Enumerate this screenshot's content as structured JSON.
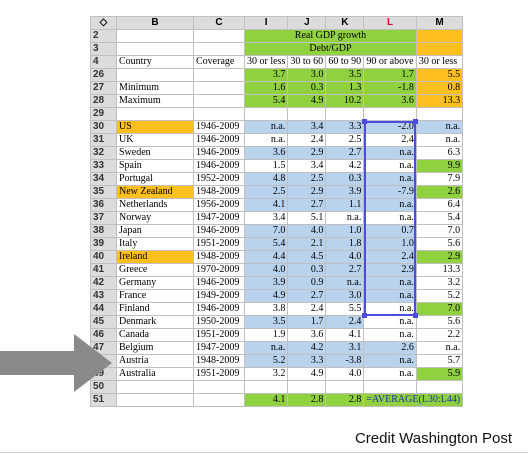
{
  "columns": [
    "◇",
    "B",
    "C",
    "I",
    "J",
    "K",
    "L",
    "M"
  ],
  "rows": [
    {
      "n": "2",
      "cells": [
        [
          "",
          "w"
        ],
        [
          "",
          "w"
        ],
        [
          "Real GDP growth",
          "g",
          4,
          "hdr"
        ],
        [
          "",
          "o"
        ]
      ]
    },
    {
      "n": "3",
      "cells": [
        [
          "",
          "w"
        ],
        [
          "",
          "w"
        ],
        [
          "Debt/GDP",
          "g",
          4,
          "hdr"
        ],
        [
          "",
          "o"
        ]
      ]
    },
    {
      "n": "4",
      "cells": [
        [
          "Country",
          "w"
        ],
        [
          "Coverage",
          "w"
        ],
        [
          "30 or less",
          "w"
        ],
        [
          "30 to 60",
          "w"
        ],
        [
          "60 to 90",
          "w"
        ],
        [
          "90 or above",
          "w"
        ],
        [
          "30 or less",
          "w"
        ]
      ]
    },
    {
      "n": "26",
      "cells": [
        [
          "",
          "w"
        ],
        [
          "",
          "w"
        ],
        [
          "3.7",
          "g"
        ],
        [
          "3.0",
          "g"
        ],
        [
          "3.5",
          "g"
        ],
        [
          "1.7",
          "g"
        ],
        [
          "5.5",
          "o"
        ]
      ]
    },
    {
      "n": "27",
      "cells": [
        [
          "Minimum",
          "w"
        ],
        [
          "",
          "w"
        ],
        [
          "1.6",
          "g"
        ],
        [
          "0.3",
          "g"
        ],
        [
          "1.3",
          "g"
        ],
        [
          "-1.8",
          "g"
        ],
        [
          "0.8",
          "o"
        ]
      ]
    },
    {
      "n": "28",
      "cells": [
        [
          "Maximum",
          "w"
        ],
        [
          "",
          "w"
        ],
        [
          "5.4",
          "g"
        ],
        [
          "4.9",
          "g"
        ],
        [
          "10.2",
          "g"
        ],
        [
          "3.6",
          "g"
        ],
        [
          "13.3",
          "o"
        ]
      ]
    },
    {
      "n": "29",
      "cells": [
        [
          "",
          "w"
        ],
        [
          "",
          "w"
        ],
        [
          "",
          "w"
        ],
        [
          "",
          "w"
        ],
        [
          "",
          "w"
        ],
        [
          "",
          "w"
        ],
        [
          "",
          "w"
        ]
      ]
    },
    {
      "n": "30",
      "cells": [
        [
          "US",
          "o"
        ],
        [
          "1946-2009",
          "w"
        ],
        [
          "n.a.",
          "b"
        ],
        [
          "3.4",
          "b"
        ],
        [
          "3.3",
          "b"
        ],
        [
          "-2.0",
          "b"
        ],
        [
          "n.a.",
          "b"
        ]
      ]
    },
    {
      "n": "31",
      "cells": [
        [
          "UK",
          "w"
        ],
        [
          "1946-2009",
          "w"
        ],
        [
          "n.a.",
          "w"
        ],
        [
          "2.4",
          "w"
        ],
        [
          "2.5",
          "w"
        ],
        [
          "2.4",
          "w"
        ],
        [
          "n.a.",
          "w"
        ]
      ]
    },
    {
      "n": "32",
      "cells": [
        [
          "Sweden",
          "w"
        ],
        [
          "1946-2009",
          "w"
        ],
        [
          "3.6",
          "b"
        ],
        [
          "2.9",
          "b"
        ],
        [
          "2.7",
          "b"
        ],
        [
          "n.a.",
          "b"
        ],
        [
          "6.3",
          "w"
        ]
      ]
    },
    {
      "n": "33",
      "cells": [
        [
          "Spain",
          "w"
        ],
        [
          "1946-2009",
          "w"
        ],
        [
          "1.5",
          "w"
        ],
        [
          "3.4",
          "w"
        ],
        [
          "4.2",
          "w"
        ],
        [
          "n.a.",
          "w"
        ],
        [
          "9.9",
          "g"
        ]
      ]
    },
    {
      "n": "34",
      "cells": [
        [
          "Portugal",
          "w"
        ],
        [
          "1952-2009",
          "w"
        ],
        [
          "4.8",
          "b"
        ],
        [
          "2.5",
          "b"
        ],
        [
          "0.3",
          "b"
        ],
        [
          "n.a.",
          "b"
        ],
        [
          "7.9",
          "w"
        ]
      ]
    },
    {
      "n": "35",
      "cells": [
        [
          "New Zealand",
          "o"
        ],
        [
          "1948-2009",
          "w"
        ],
        [
          "2.5",
          "b"
        ],
        [
          "2.9",
          "b"
        ],
        [
          "3.9",
          "b"
        ],
        [
          "-7.9",
          "b"
        ],
        [
          "2.6",
          "g"
        ]
      ]
    },
    {
      "n": "36",
      "cells": [
        [
          "Netherlands",
          "w"
        ],
        [
          "1956-2009",
          "w"
        ],
        [
          "4.1",
          "b"
        ],
        [
          "2.7",
          "b"
        ],
        [
          "1.1",
          "b"
        ],
        [
          "n.a.",
          "b"
        ],
        [
          "6.4",
          "w"
        ]
      ]
    },
    {
      "n": "37",
      "cells": [
        [
          "Norway",
          "w"
        ],
        [
          "1947-2009",
          "w"
        ],
        [
          "3.4",
          "w"
        ],
        [
          "5.1",
          "w"
        ],
        [
          "n.a.",
          "w"
        ],
        [
          "n.a.",
          "w"
        ],
        [
          "5.4",
          "w"
        ]
      ]
    },
    {
      "n": "38",
      "cells": [
        [
          "Japan",
          "w"
        ],
        [
          "1946-2009",
          "w"
        ],
        [
          "7.0",
          "b"
        ],
        [
          "4.0",
          "b"
        ],
        [
          "1.0",
          "b"
        ],
        [
          "0.7",
          "b"
        ],
        [
          "7.0",
          "w"
        ]
      ]
    },
    {
      "n": "39",
      "cells": [
        [
          "Italy",
          "w"
        ],
        [
          "1951-2009",
          "w"
        ],
        [
          "5.4",
          "b"
        ],
        [
          "2.1",
          "b"
        ],
        [
          "1.8",
          "b"
        ],
        [
          "1.0",
          "b"
        ],
        [
          "5.6",
          "w"
        ]
      ]
    },
    {
      "n": "40",
      "cells": [
        [
          "Ireland",
          "o"
        ],
        [
          "1948-2009",
          "w"
        ],
        [
          "4.4",
          "b"
        ],
        [
          "4.5",
          "b"
        ],
        [
          "4.0",
          "b"
        ],
        [
          "2.4",
          "b"
        ],
        [
          "2.9",
          "g"
        ]
      ]
    },
    {
      "n": "41",
      "cells": [
        [
          "Greece",
          "w"
        ],
        [
          "1970-2009",
          "w"
        ],
        [
          "4.0",
          "b"
        ],
        [
          "0.3",
          "b"
        ],
        [
          "2.7",
          "b"
        ],
        [
          "2.9",
          "b"
        ],
        [
          "13.3",
          "w"
        ]
      ]
    },
    {
      "n": "42",
      "cells": [
        [
          "Germany",
          "w"
        ],
        [
          "1946-2009",
          "w"
        ],
        [
          "3.9",
          "b"
        ],
        [
          "0.9",
          "b"
        ],
        [
          "n.a.",
          "b"
        ],
        [
          "n.a.",
          "b"
        ],
        [
          "3.2",
          "w"
        ]
      ]
    },
    {
      "n": "43",
      "cells": [
        [
          "France",
          "w"
        ],
        [
          "1949-2009",
          "w"
        ],
        [
          "4.9",
          "b"
        ],
        [
          "2.7",
          "b"
        ],
        [
          "3.0",
          "b"
        ],
        [
          "n.a.",
          "b"
        ],
        [
          "5.2",
          "w"
        ]
      ]
    },
    {
      "n": "44",
      "cells": [
        [
          "Finland",
          "w"
        ],
        [
          "1946-2009",
          "w"
        ],
        [
          "3.8",
          "w"
        ],
        [
          "2.4",
          "w"
        ],
        [
          "5.5",
          "w"
        ],
        [
          "n.a.",
          "w"
        ],
        [
          "7.0",
          "g"
        ]
      ]
    },
    {
      "n": "45",
      "cells": [
        [
          "Denmark",
          "w"
        ],
        [
          "1950-2009",
          "w"
        ],
        [
          "3.5",
          "b"
        ],
        [
          "1.7",
          "b"
        ],
        [
          "2.4",
          "b"
        ],
        [
          "n.a.",
          "w"
        ],
        [
          "5.6",
          "w"
        ]
      ]
    },
    {
      "n": "46",
      "cells": [
        [
          "Canada",
          "w"
        ],
        [
          "1951-2009",
          "w"
        ],
        [
          "1.9",
          "w"
        ],
        [
          "3.6",
          "w"
        ],
        [
          "4.1",
          "w"
        ],
        [
          "n.a.",
          "w"
        ],
        [
          "2.2",
          "w"
        ]
      ]
    },
    {
      "n": "47",
      "cells": [
        [
          "Belgium",
          "w"
        ],
        [
          "1947-2009",
          "w"
        ],
        [
          "n.a.",
          "b"
        ],
        [
          "4.2",
          "b"
        ],
        [
          "3.1",
          "b"
        ],
        [
          "2.6",
          "b"
        ],
        [
          "n.a.",
          "w"
        ]
      ]
    },
    {
      "n": "48",
      "cells": [
        [
          "Austria",
          "w"
        ],
        [
          "1948-2009",
          "w"
        ],
        [
          "5.2",
          "b"
        ],
        [
          "3.3",
          "b"
        ],
        [
          "-3.8",
          "b"
        ],
        [
          "n.a.",
          "b"
        ],
        [
          "5.7",
          "w"
        ]
      ]
    },
    {
      "n": "49",
      "cells": [
        [
          "Australia",
          "w"
        ],
        [
          "1951-2009",
          "w"
        ],
        [
          "3.2",
          "w"
        ],
        [
          "4.9",
          "w"
        ],
        [
          "4.0",
          "w"
        ],
        [
          "n.a.",
          "w"
        ],
        [
          "5.9",
          "g"
        ]
      ]
    },
    {
      "n": "50",
      "cells": [
        [
          "",
          "w"
        ],
        [
          "",
          "w"
        ],
        [
          "",
          "w"
        ],
        [
          "",
          "w"
        ],
        [
          "",
          "w"
        ],
        [
          "",
          "w"
        ],
        [
          "",
          "w"
        ]
      ]
    },
    {
      "n": "51",
      "cells": [
        [
          "",
          "w"
        ],
        [
          "",
          "w"
        ],
        [
          "4.1",
          "g"
        ],
        [
          "2.8",
          "g"
        ],
        [
          "2.8",
          "g"
        ],
        [
          "=AVERAGE(L30:L44)",
          "g",
          2,
          "f"
        ]
      ]
    }
  ],
  "credit": "Credit Washington Post",
  "colors": {
    "green": "#8fd13f",
    "blue": "#b9d3ef",
    "orange": "#ffbf1f",
    "selection": "#4c4ce0",
    "arrow": "#8a8a8a"
  },
  "icons": {
    "select_all": "diamond-icon",
    "pointer": "arrow-right-icon"
  }
}
